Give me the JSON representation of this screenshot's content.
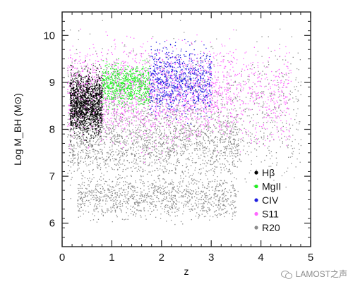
{
  "chart_data": {
    "type": "scatter",
    "xlabel": "z",
    "ylabel": "Log M_BH (M⊙)",
    "xlim": [
      0,
      5
    ],
    "ylim": [
      5.5,
      10.5
    ],
    "x_ticks": [
      "0",
      "1",
      "2",
      "3",
      "4",
      "5"
    ],
    "y_ticks": [
      "6",
      "7",
      "8",
      "9",
      "10"
    ],
    "legend_position": "lower-right",
    "series": [
      {
        "name": "R20",
        "color": "#8c8c8c",
        "regions": [
          {
            "x": [
              0.1,
              3.6
            ],
            "y": [
              6.6,
              8.8
            ]
          },
          {
            "x": [
              0.3,
              3.5
            ],
            "y": [
              5.9,
              7.2
            ]
          },
          {
            "x": [
              0.1,
              4.8
            ],
            "y": [
              6.2,
              10.4
            ]
          }
        ]
      },
      {
        "name": "S11",
        "color": "#ff66ff",
        "regions": [
          {
            "x": [
              0.1,
              4.6
            ],
            "y": [
              7.2,
              10.3
            ]
          },
          {
            "x": [
              0.1,
              3.4
            ],
            "y": [
              7.6,
              10.1
            ]
          }
        ]
      },
      {
        "name": "CIV",
        "color": "#1f1fe0",
        "regions": [
          {
            "x": [
              1.75,
              3.0
            ],
            "y": [
              8.0,
              10.1
            ]
          }
        ]
      },
      {
        "name": "MgII",
        "color": "#20f020",
        "regions": [
          {
            "x": [
              0.8,
              1.75
            ],
            "y": [
              8.3,
              9.6
            ]
          }
        ]
      },
      {
        "name": "Hβ",
        "color": "#000000",
        "regions": [
          {
            "x": [
              0.15,
              0.8
            ],
            "y": [
              7.6,
              9.5
            ]
          }
        ]
      }
    ]
  },
  "watermark": {
    "text": "LAMOST之声",
    "icon": "chat-bubbles-icon"
  }
}
